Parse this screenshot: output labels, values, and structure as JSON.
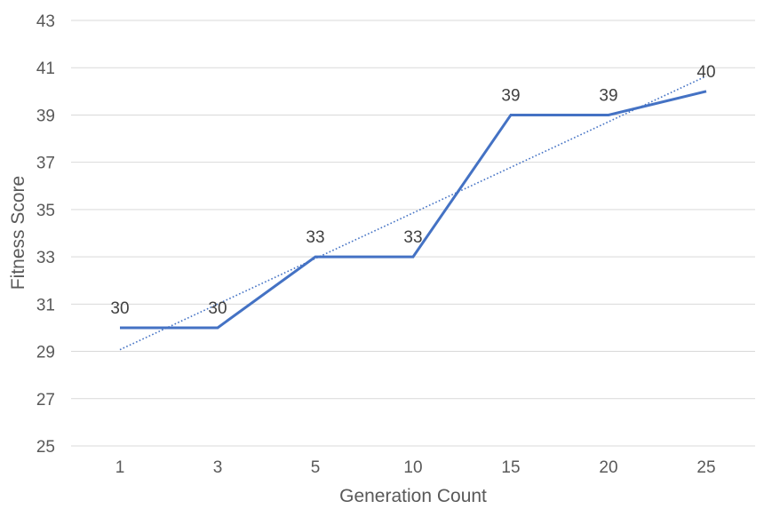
{
  "chart_data": {
    "type": "line",
    "categories": [
      "1",
      "3",
      "5",
      "10",
      "15",
      "20",
      "25"
    ],
    "series": [
      {
        "values": [
          30,
          30,
          33,
          33,
          39,
          39,
          40
        ],
        "color": "#4472c4",
        "data_labels": true
      }
    ],
    "trendline": {
      "type": "linear",
      "style": "dotted",
      "color": "#4472c4"
    },
    "xlabel": "Generation Count",
    "ylabel": "Fitness Score",
    "ylim": [
      25,
      43
    ],
    "yticks": [
      25,
      27,
      29,
      31,
      33,
      35,
      37,
      39,
      41,
      43
    ],
    "grid": true,
    "legend": "none"
  }
}
